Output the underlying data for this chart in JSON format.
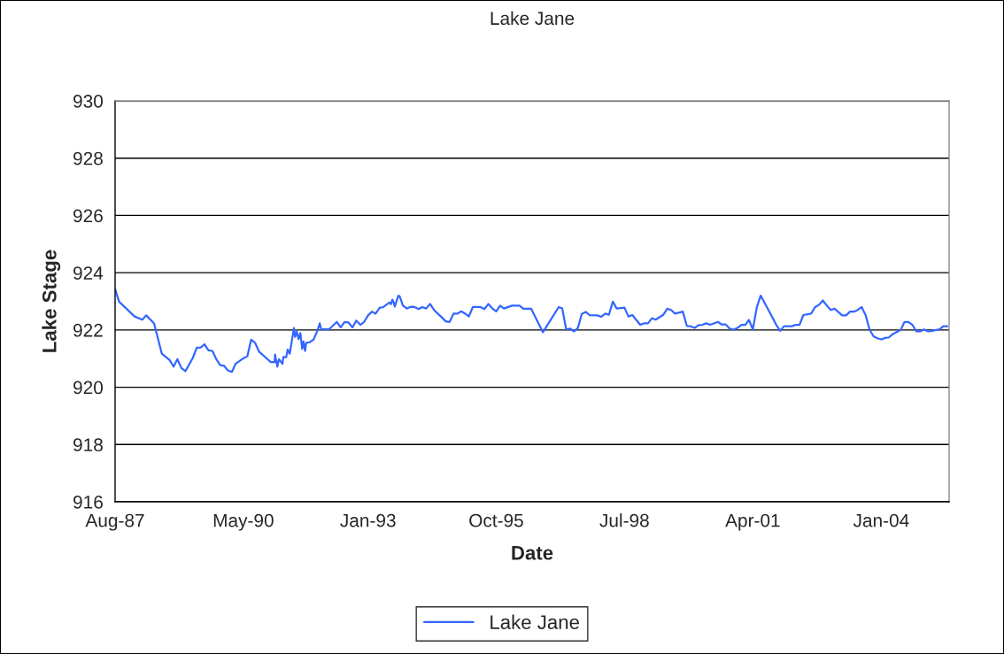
{
  "chart_data": {
    "type": "line",
    "title": "Lake Jane",
    "xlabel": "Date",
    "ylabel": "Lake Stage",
    "xlim": [
      "1987-08-01",
      "2005-06-15"
    ],
    "xticks": [
      {
        "value": "1987-08-01",
        "label": "Aug-87"
      },
      {
        "value": "1990-05-01",
        "label": "May-90"
      },
      {
        "value": "1993-01-01",
        "label": "Jan-93"
      },
      {
        "value": "1995-10-01",
        "label": "Oct-95"
      },
      {
        "value": "1998-07-01",
        "label": "Jul-98"
      },
      {
        "value": "2001-04-01",
        "label": "Apr-01"
      },
      {
        "value": "2004-01-01",
        "label": "Jan-04"
      }
    ],
    "ylim": [
      916,
      930
    ],
    "yticks": [
      916,
      918,
      920,
      922,
      924,
      926,
      928,
      930
    ],
    "grid": "y",
    "legend": "bottom",
    "marker": "none",
    "line_style": "solid",
    "series": [
      {
        "name": "Lake Jane",
        "color": "#3366ff",
        "x": [
          "1987-08-01",
          "1987-09-01",
          "1988-01-01",
          "1988-03-01",
          "1988-04-01",
          "1988-06-01",
          "1988-08-01",
          "1988-10-01",
          "1988-11-01",
          "1988-12-01",
          "1989-01-01",
          "1989-02-01",
          "1989-04-01",
          "1989-05-01",
          "1989-06-01",
          "1989-07-01",
          "1989-08-01",
          "1989-09-01",
          "1989-10-01",
          "1989-11-01",
          "1989-12-01",
          "1990-01-01",
          "1990-02-01",
          "1990-03-01",
          "1990-05-01",
          "1990-06-01",
          "1990-07-01",
          "1990-08-01",
          "1990-09-01",
          "1990-11-01",
          "1990-12-01",
          "1991-01-01",
          "1991-01-04",
          "1991-01-22",
          "1991-02-03",
          "1991-03-03",
          "1991-03-10",
          "1991-04-01",
          "1991-04-13",
          "1991-04-29",
          "1991-05-13",
          "1991-06-01",
          "1991-06-10",
          "1991-06-23",
          "1991-07-07",
          "1991-07-21",
          "1991-08-04",
          "1991-08-14",
          "1991-08-27",
          "1991-09-05",
          "1991-10-01",
          "1991-11-01",
          "1991-12-01",
          "1991-12-20",
          "1992-01-01",
          "1992-03-01",
          "1992-05-01",
          "1992-06-01",
          "1992-07-01",
          "1992-08-01",
          "1992-09-01",
          "1992-10-01",
          "1992-11-01",
          "1992-12-01",
          "1993-01-01",
          "1993-02-01",
          "1993-03-01",
          "1993-04-01",
          "1993-05-01",
          "1993-06-17",
          "1993-06-29",
          "1993-07-10",
          "1993-07-22",
          "1993-07-29",
          "1993-08-26",
          "1993-09-06",
          "1993-10-01",
          "1993-11-01",
          "1993-12-01",
          "1994-01-01",
          "1994-02-01",
          "1994-03-01",
          "1994-04-01",
          "1994-05-01",
          "1994-06-01",
          "1994-08-01",
          "1994-09-01",
          "1994-10-01",
          "1994-11-01",
          "1994-12-01",
          "1995-01-01",
          "1995-02-01",
          "1995-03-01",
          "1995-04-01",
          "1995-06-01",
          "1995-07-01",
          "1995-08-01",
          "1995-09-01",
          "1995-10-01",
          "1995-11-01",
          "1995-12-01",
          "1996-02-01",
          "1996-04-01",
          "1996-05-01",
          "1996-07-01",
          "1996-10-01",
          "1997-02-01",
          "1997-03-01",
          "1997-04-01",
          "1997-05-01",
          "1997-06-01",
          "1997-07-01",
          "1997-08-01",
          "1997-09-01",
          "1997-10-01",
          "1997-12-01",
          "1998-01-01",
          "1998-02-01",
          "1998-03-01",
          "1998-04-01",
          "1998-05-01",
          "1998-07-01",
          "1998-08-01",
          "1998-09-01",
          "1998-11-01",
          "1998-12-01",
          "1999-01-01",
          "1999-02-01",
          "1999-03-01",
          "1999-05-01",
          "1999-06-01",
          "1999-07-01",
          "1999-08-01",
          "1999-10-01",
          "1999-11-01",
          "1999-12-01",
          "2000-01-01",
          "2000-02-01",
          "2000-03-01",
          "2000-04-01",
          "2000-05-01",
          "2000-07-01",
          "2000-08-01",
          "2000-09-01",
          "2000-10-01",
          "2000-11-01",
          "2000-12-01",
          "2001-01-01",
          "2001-02-01",
          "2001-03-01",
          "2001-04-01",
          "2001-05-01",
          "2001-06-01",
          "2001-08-01",
          "2001-10-01",
          "2001-11-01",
          "2001-12-01",
          "2002-02-01",
          "2002-03-01",
          "2002-04-01",
          "2002-05-01",
          "2002-07-01",
          "2002-08-01",
          "2002-09-01",
          "2002-10-01",
          "2002-11-01",
          "2002-12-01",
          "2003-01-01",
          "2003-03-01",
          "2003-04-01",
          "2003-05-01",
          "2003-06-01",
          "2003-07-01",
          "2003-08-01",
          "2003-09-01",
          "2003-10-01",
          "2003-11-01",
          "2003-12-01",
          "2004-01-01",
          "2004-02-01",
          "2004-03-01",
          "2004-04-01",
          "2004-06-01",
          "2004-07-01",
          "2004-08-01",
          "2004-09-01",
          "2004-10-01",
          "2004-11-01",
          "2004-12-01",
          "2005-01-01",
          "2005-02-01",
          "2005-04-01",
          "2005-05-01",
          "2005-06-01"
        ],
        "values": [
          923.43,
          922.99,
          922.47,
          922.36,
          922.51,
          922.23,
          921.17,
          920.95,
          920.72,
          920.98,
          920.67,
          920.56,
          921.03,
          921.38,
          921.39,
          921.5,
          921.29,
          921.27,
          920.98,
          920.77,
          920.75,
          920.58,
          920.54,
          920.82,
          921.01,
          921.08,
          921.66,
          921.55,
          921.24,
          921.0,
          920.88,
          920.88,
          921.14,
          920.72,
          920.98,
          920.82,
          921.06,
          921.05,
          921.32,
          921.17,
          921.55,
          922.07,
          921.76,
          921.95,
          921.68,
          921.89,
          921.34,
          921.6,
          921.27,
          921.55,
          921.57,
          921.66,
          921.97,
          922.23,
          922.02,
          922.02,
          922.28,
          922.09,
          922.28,
          922.26,
          922.09,
          922.33,
          922.18,
          922.28,
          922.51,
          922.64,
          922.57,
          922.77,
          922.8,
          922.96,
          922.9,
          923.06,
          922.94,
          922.82,
          923.2,
          923.17,
          922.85,
          922.75,
          922.81,
          922.8,
          922.73,
          922.8,
          922.75,
          922.91,
          922.7,
          922.44,
          922.3,
          922.28,
          922.57,
          922.57,
          922.65,
          922.57,
          922.47,
          922.8,
          922.8,
          922.73,
          922.91,
          922.75,
          922.65,
          922.85,
          922.75,
          922.85,
          922.85,
          922.74,
          922.74,
          921.92,
          922.8,
          922.75,
          922.02,
          922.05,
          921.95,
          922.07,
          922.56,
          922.63,
          922.52,
          922.51,
          922.46,
          922.57,
          922.53,
          922.99,
          922.75,
          922.78,
          922.47,
          922.52,
          922.18,
          922.23,
          922.23,
          922.41,
          922.36,
          922.53,
          922.74,
          922.7,
          922.57,
          922.64,
          922.14,
          922.13,
          922.07,
          922.17,
          922.18,
          922.23,
          922.18,
          922.28,
          922.19,
          922.19,
          922.05,
          922.01,
          922.07,
          922.18,
          922.18,
          922.35,
          922.02,
          922.78,
          923.2,
          922.7,
          922.18,
          921.97,
          922.13,
          922.13,
          922.18,
          922.18,
          922.52,
          922.57,
          922.8,
          922.88,
          923.03,
          922.85,
          922.7,
          922.74,
          922.51,
          922.51,
          922.64,
          922.64,
          922.7,
          922.8,
          922.51,
          922.02,
          921.78,
          921.71,
          921.67,
          921.72,
          921.74,
          921.86,
          922.0,
          922.28,
          922.28,
          922.18,
          921.95,
          921.95,
          922.02,
          921.95,
          921.97,
          922.02,
          922.13,
          922.13
        ]
      }
    ]
  }
}
